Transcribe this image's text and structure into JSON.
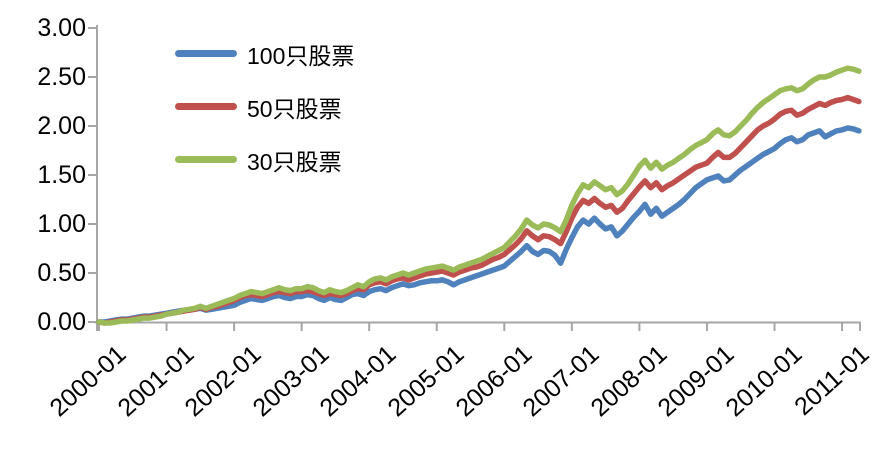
{
  "chart_data": {
    "type": "line",
    "title": "",
    "xlabel": "",
    "ylabel": "",
    "ylim": [
      0,
      3
    ],
    "grid": false,
    "legend_position": "top-left-inside",
    "axis_color": "#A6A6A6",
    "text_color": "#000000",
    "background_color": "#FFFFFF",
    "y_tick_labels": [
      "0.00",
      "0.50",
      "1.00",
      "1.50",
      "2.00",
      "2.50",
      "3.00"
    ],
    "x_tick_labels": [
      "2000-01",
      "2001-01",
      "2002-01",
      "2003-01",
      "2004-01",
      "2005-01",
      "2006-01",
      "2007-01",
      "2008-01",
      "2009-01",
      "2010-01",
      "2011-01"
    ],
    "x_start": "2000-01",
    "x_end": "2011-04",
    "x_interval": "monthly",
    "series": [
      {
        "name": "100只股票",
        "color": "#4F81BD",
        "values": [
          0.0,
          0.0,
          0.01,
          0.02,
          0.03,
          0.03,
          0.04,
          0.05,
          0.06,
          0.06,
          0.07,
          0.08,
          0.09,
          0.1,
          0.11,
          0.12,
          0.12,
          0.13,
          0.14,
          0.12,
          0.13,
          0.14,
          0.15,
          0.16,
          0.17,
          0.2,
          0.22,
          0.24,
          0.23,
          0.22,
          0.24,
          0.26,
          0.27,
          0.25,
          0.24,
          0.26,
          0.26,
          0.28,
          0.27,
          0.24,
          0.22,
          0.25,
          0.23,
          0.22,
          0.25,
          0.28,
          0.29,
          0.27,
          0.31,
          0.33,
          0.34,
          0.32,
          0.35,
          0.37,
          0.39,
          0.37,
          0.38,
          0.4,
          0.41,
          0.42,
          0.42,
          0.43,
          0.41,
          0.38,
          0.41,
          0.43,
          0.45,
          0.47,
          0.49,
          0.51,
          0.53,
          0.55,
          0.57,
          0.62,
          0.67,
          0.72,
          0.78,
          0.72,
          0.69,
          0.73,
          0.72,
          0.68,
          0.6,
          0.74,
          0.86,
          0.97,
          1.04,
          1.0,
          1.06,
          1.0,
          0.95,
          0.97,
          0.88,
          0.93,
          1.0,
          1.07,
          1.13,
          1.2,
          1.1,
          1.16,
          1.08,
          1.12,
          1.16,
          1.2,
          1.25,
          1.31,
          1.37,
          1.41,
          1.45,
          1.47,
          1.49,
          1.44,
          1.45,
          1.5,
          1.55,
          1.59,
          1.63,
          1.67,
          1.71,
          1.74,
          1.77,
          1.82,
          1.86,
          1.88,
          1.84,
          1.86,
          1.91,
          1.93,
          1.95,
          1.89,
          1.92,
          1.95,
          1.96,
          1.98,
          1.97,
          1.95
        ]
      },
      {
        "name": "50只股票",
        "color": "#C0504D",
        "values": [
          0.0,
          -0.01,
          0.0,
          0.01,
          0.02,
          0.02,
          0.03,
          0.04,
          0.05,
          0.05,
          0.06,
          0.07,
          0.08,
          0.09,
          0.1,
          0.11,
          0.12,
          0.13,
          0.15,
          0.13,
          0.15,
          0.16,
          0.18,
          0.2,
          0.22,
          0.25,
          0.27,
          0.28,
          0.27,
          0.26,
          0.28,
          0.3,
          0.31,
          0.3,
          0.29,
          0.31,
          0.31,
          0.32,
          0.31,
          0.29,
          0.27,
          0.29,
          0.28,
          0.27,
          0.29,
          0.32,
          0.34,
          0.33,
          0.38,
          0.4,
          0.41,
          0.39,
          0.42,
          0.44,
          0.45,
          0.43,
          0.45,
          0.47,
          0.49,
          0.5,
          0.51,
          0.52,
          0.5,
          0.48,
          0.51,
          0.53,
          0.55,
          0.56,
          0.58,
          0.61,
          0.64,
          0.66,
          0.69,
          0.74,
          0.79,
          0.85,
          0.93,
          0.88,
          0.84,
          0.88,
          0.87,
          0.84,
          0.8,
          0.92,
          1.06,
          1.17,
          1.24,
          1.21,
          1.26,
          1.21,
          1.17,
          1.19,
          1.12,
          1.16,
          1.24,
          1.31,
          1.38,
          1.44,
          1.37,
          1.42,
          1.35,
          1.39,
          1.42,
          1.46,
          1.5,
          1.54,
          1.58,
          1.6,
          1.62,
          1.68,
          1.73,
          1.68,
          1.68,
          1.72,
          1.78,
          1.84,
          1.9,
          1.96,
          2.0,
          2.03,
          2.07,
          2.12,
          2.15,
          2.16,
          2.11,
          2.13,
          2.17,
          2.2,
          2.23,
          2.21,
          2.24,
          2.26,
          2.27,
          2.29,
          2.27,
          2.25
        ]
      },
      {
        "name": "30只股票",
        "color": "#9BBB59",
        "values": [
          0.0,
          -0.01,
          -0.01,
          0.0,
          0.01,
          0.01,
          0.02,
          0.03,
          0.04,
          0.04,
          0.05,
          0.06,
          0.08,
          0.09,
          0.1,
          0.12,
          0.13,
          0.14,
          0.16,
          0.14,
          0.16,
          0.18,
          0.2,
          0.22,
          0.24,
          0.27,
          0.29,
          0.31,
          0.3,
          0.29,
          0.31,
          0.33,
          0.35,
          0.33,
          0.32,
          0.34,
          0.34,
          0.36,
          0.35,
          0.32,
          0.3,
          0.33,
          0.31,
          0.3,
          0.32,
          0.35,
          0.38,
          0.36,
          0.41,
          0.44,
          0.45,
          0.43,
          0.46,
          0.48,
          0.5,
          0.48,
          0.5,
          0.52,
          0.54,
          0.55,
          0.56,
          0.57,
          0.55,
          0.53,
          0.56,
          0.58,
          0.6,
          0.62,
          0.64,
          0.67,
          0.7,
          0.73,
          0.76,
          0.82,
          0.88,
          0.95,
          1.04,
          0.99,
          0.96,
          1.0,
          0.99,
          0.96,
          0.92,
          1.04,
          1.19,
          1.31,
          1.4,
          1.37,
          1.43,
          1.39,
          1.35,
          1.37,
          1.3,
          1.34,
          1.41,
          1.5,
          1.59,
          1.65,
          1.57,
          1.63,
          1.56,
          1.6,
          1.63,
          1.67,
          1.71,
          1.76,
          1.8,
          1.83,
          1.86,
          1.92,
          1.96,
          1.91,
          1.9,
          1.94,
          2.0,
          2.06,
          2.13,
          2.19,
          2.24,
          2.28,
          2.32,
          2.36,
          2.38,
          2.39,
          2.36,
          2.38,
          2.43,
          2.47,
          2.5,
          2.5,
          2.52,
          2.55,
          2.57,
          2.59,
          2.58,
          2.56
        ]
      }
    ]
  }
}
